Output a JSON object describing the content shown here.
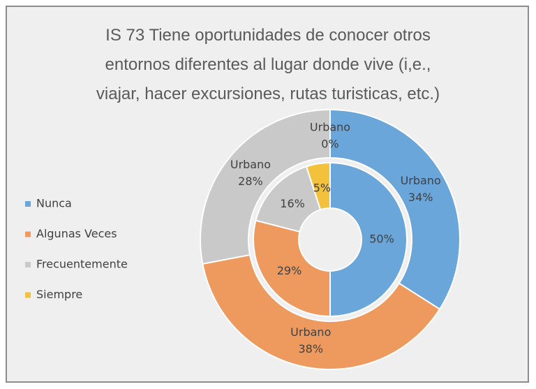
{
  "chart_data": {
    "type": "donut",
    "title": "IS 73 Tiene oportunidades de conocer otros\nentornos diferentes al lugar donde vive (i,e.,\nviajar, hacer excursiones, rutas turisticas, etc.)",
    "categories": [
      "Nunca",
      "Algunas Veces",
      "Frecuentemente",
      "Siempre"
    ],
    "colors": [
      "#6aa6da",
      "#ee9a5f",
      "#c9c9c9",
      "#f4c13c"
    ],
    "legend": "left",
    "series": [
      {
        "name": "Urbano",
        "values": [
          34,
          38,
          28,
          0
        ],
        "value_labels": [
          "34%",
          "38%",
          "28%",
          "0%"
        ]
      },
      {
        "values": [
          50,
          29,
          16,
          5
        ],
        "value_labels": [
          "50%",
          "29%",
          "16%",
          "5%"
        ]
      }
    ]
  }
}
